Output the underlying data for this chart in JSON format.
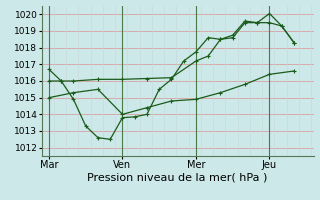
{
  "background_color": "#cce8e8",
  "grid_color_h": "#d8a0a0",
  "grid_color_v": "#c8d8d8",
  "line_color": "#1a5c1a",
  "day_line_color": "#4a7a4a",
  "xlabel": "Pression niveau de la mer( hPa )",
  "ylim": [
    1011.5,
    1020.5
  ],
  "xlim": [
    -0.3,
    10.8
  ],
  "yticks": [
    1012,
    1013,
    1014,
    1015,
    1016,
    1017,
    1018,
    1019,
    1020
  ],
  "xtick_labels": [
    "Mar",
    "Ven",
    "Mer",
    "Jeu"
  ],
  "xtick_positions": [
    0,
    3,
    6,
    9
  ],
  "day_vlines": [
    0,
    3,
    6,
    9
  ],
  "line1_x": [
    0.0,
    0.5,
    1.0,
    1.5,
    2.0,
    2.5,
    3.0,
    3.5,
    4.0,
    4.5,
    5.0,
    5.5,
    6.0,
    6.5,
    7.0,
    7.5,
    8.0,
    8.5,
    9.0,
    9.5,
    10.0
  ],
  "line1_y": [
    1016.7,
    1016.0,
    1014.9,
    1013.3,
    1012.6,
    1012.5,
    1013.8,
    1013.85,
    1014.0,
    1015.5,
    1016.1,
    1017.2,
    1017.75,
    1018.6,
    1018.5,
    1018.75,
    1019.6,
    1019.5,
    1020.05,
    1019.3,
    1018.3
  ],
  "line2_x": [
    0.0,
    0.5,
    1.0,
    2.0,
    3.0,
    4.0,
    5.0,
    6.0,
    6.5,
    7.0,
    7.5,
    8.0,
    8.5,
    9.0,
    9.5,
    10.0
  ],
  "line2_y": [
    1016.0,
    1016.0,
    1016.0,
    1016.1,
    1016.1,
    1016.15,
    1016.2,
    1017.2,
    1017.5,
    1018.5,
    1018.6,
    1019.5,
    1019.5,
    1019.5,
    1019.3,
    1018.3
  ],
  "line3_x": [
    0.0,
    1.0,
    2.0,
    3.0,
    4.0,
    5.0,
    6.0,
    7.0,
    8.0,
    9.0,
    10.0
  ],
  "line3_y": [
    1015.0,
    1015.3,
    1015.5,
    1014.0,
    1014.4,
    1014.8,
    1014.9,
    1015.3,
    1015.8,
    1016.4,
    1016.6
  ],
  "marker_size": 2.5,
  "xlabel_fontsize": 8,
  "tick_fontsize": 6.5
}
